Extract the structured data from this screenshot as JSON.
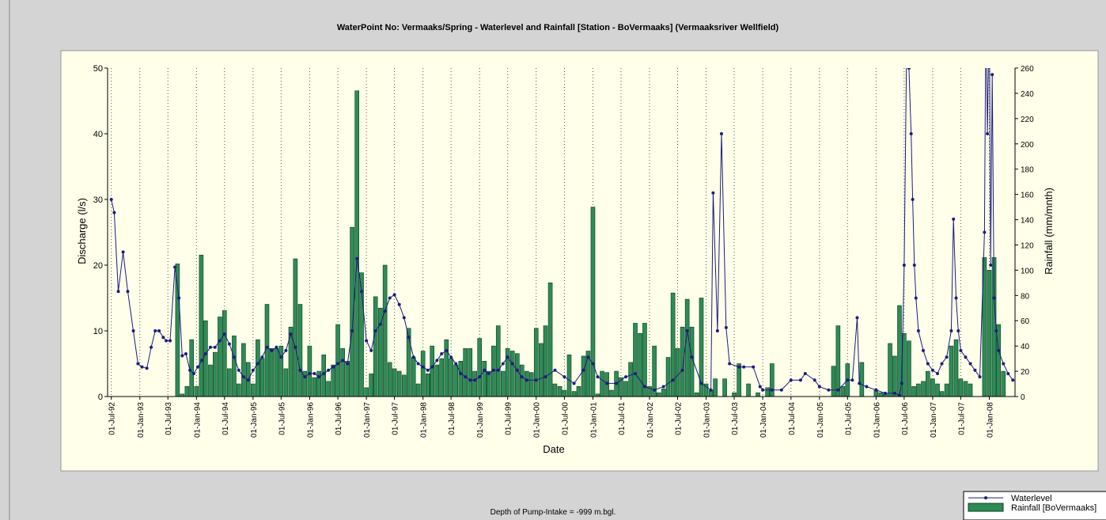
{
  "chart_data": {
    "type": "combo",
    "title": "WaterPoint No: Vermaaks/Spring - Waterlevel and Rainfall [Station - BoVermaaks] (Vermaaksriver Wellfield)",
    "subtitle": "Depth of Pump-Intake = -999 m.bgl.",
    "x_label": "Date",
    "y_label": "Discharge (l/s)",
    "y2_label": "Rainfall (mm/mnth)",
    "xlim": [
      "1992-06-07",
      "2008-06-15"
    ],
    "ylim": [
      0,
      50
    ],
    "yticks": [
      0,
      10,
      20,
      30,
      40,
      50
    ],
    "y2lim": [
      0,
      260
    ],
    "y2ticks": [
      0,
      20,
      40,
      60,
      80,
      100,
      120,
      140,
      160,
      180,
      200,
      220,
      240,
      260
    ],
    "xticks": [
      {
        "value": "1992-07-01",
        "label": "01-Jul-92"
      },
      {
        "value": "1993-01-01",
        "label": "01-Jan-93"
      },
      {
        "value": "1993-07-01",
        "label": "01-Jul-93"
      },
      {
        "value": "1994-01-01",
        "label": "01-Jan-94"
      },
      {
        "value": "1994-07-01",
        "label": "01-Jul-94"
      },
      {
        "value": "1995-01-01",
        "label": "01-Jan-95"
      },
      {
        "value": "1995-07-01",
        "label": "01-Jul-95"
      },
      {
        "value": "1996-01-01",
        "label": "01-Jan-96"
      },
      {
        "value": "1996-07-01",
        "label": "01-Jul-96"
      },
      {
        "value": "1997-01-01",
        "label": "01-Jan-97"
      },
      {
        "value": "1997-07-01",
        "label": "01-Jul-97"
      },
      {
        "value": "1998-01-01",
        "label": "01-Jan-98"
      },
      {
        "value": "1998-07-01",
        "label": "01-Jul-98"
      },
      {
        "value": "1999-01-01",
        "label": "01-Jan-99"
      },
      {
        "value": "1999-07-01",
        "label": "01-Jul-99"
      },
      {
        "value": "2000-01-01",
        "label": "01-Jan-00"
      },
      {
        "value": "2000-07-01",
        "label": "01-Jul-00"
      },
      {
        "value": "2001-01-01",
        "label": "01-Jan-01"
      },
      {
        "value": "2001-07-01",
        "label": "01-Jul-01"
      },
      {
        "value": "2002-01-01",
        "label": "01-Jan-02"
      },
      {
        "value": "2002-07-01",
        "label": "01-Jul-02"
      },
      {
        "value": "2003-01-01",
        "label": "01-Jan-03"
      },
      {
        "value": "2003-07-01",
        "label": "01-Jul-03"
      },
      {
        "value": "2004-01-01",
        "label": "01-Jan-04"
      },
      {
        "value": "2004-07-01",
        "label": "01-Jul-04"
      },
      {
        "value": "2005-01-01",
        "label": "01-Jan-05"
      },
      {
        "value": "2005-07-01",
        "label": "01-Jul-05"
      },
      {
        "value": "2006-01-01",
        "label": "01-Jan-06"
      },
      {
        "value": "2006-07-01",
        "label": "01-Jul-06"
      },
      {
        "value": "2007-01-01",
        "label": "01-Jan-07"
      },
      {
        "value": "2007-07-01",
        "label": "01-Jul-07"
      },
      {
        "value": "2008-01-01",
        "label": "01-Jan-08"
      }
    ],
    "grid": true,
    "legend": "bottom-right",
    "series": [
      {
        "name": "Rainfall [BoVermaaks]",
        "type": "bar",
        "axis": "y2",
        "color": "#2e8b57",
        "x": [
          "1993-09-01",
          "1993-10-01",
          "1993-11-01",
          "1993-12-01",
          "1994-01-01",
          "1994-02-01",
          "1994-03-01",
          "1994-04-01",
          "1994-05-01",
          "1994-06-01",
          "1994-07-01",
          "1994-08-01",
          "1994-09-01",
          "1994-10-01",
          "1994-11-01",
          "1994-12-01",
          "1995-01-01",
          "1995-02-01",
          "1995-03-01",
          "1995-04-01",
          "1995-05-01",
          "1995-06-01",
          "1995-07-01",
          "1995-08-01",
          "1995-09-01",
          "1995-10-01",
          "1995-11-01",
          "1995-12-01",
          "1996-01-01",
          "1996-02-01",
          "1996-03-01",
          "1996-04-01",
          "1996-05-01",
          "1996-06-01",
          "1996-07-01",
          "1996-08-01",
          "1996-09-01",
          "1996-10-01",
          "1996-11-01",
          "1996-12-01",
          "1997-01-01",
          "1997-02-01",
          "1997-03-01",
          "1997-04-01",
          "1997-05-01",
          "1997-06-01",
          "1997-07-01",
          "1997-08-01",
          "1997-09-01",
          "1997-10-01",
          "1997-11-01",
          "1997-12-01",
          "1998-01-01",
          "1998-02-01",
          "1998-03-01",
          "1998-04-01",
          "1998-05-01",
          "1998-06-01",
          "1998-07-01",
          "1998-08-01",
          "1998-09-01",
          "1998-10-01",
          "1998-11-01",
          "1998-12-01",
          "1999-01-01",
          "1999-02-01",
          "1999-03-01",
          "1999-04-01",
          "1999-05-01",
          "1999-06-01",
          "1999-07-01",
          "1999-08-01",
          "1999-09-01",
          "1999-10-01",
          "1999-11-01",
          "1999-12-01",
          "2000-01-01",
          "2000-02-01",
          "2000-03-01",
          "2000-04-01",
          "2000-05-01",
          "2000-06-01",
          "2000-07-01",
          "2000-08-01",
          "2000-09-01",
          "2000-10-01",
          "2000-11-01",
          "2000-12-01",
          "2001-01-01",
          "2001-02-01",
          "2001-03-01",
          "2001-04-01",
          "2001-05-01",
          "2001-06-01",
          "2001-07-01",
          "2001-08-01",
          "2001-09-01",
          "2001-10-01",
          "2001-11-01",
          "2001-12-01",
          "2002-01-01",
          "2002-02-01",
          "2002-03-01",
          "2002-04-01",
          "2002-05-01",
          "2002-06-01",
          "2002-07-01",
          "2002-08-01",
          "2002-09-01",
          "2002-10-01",
          "2002-11-01",
          "2002-12-01",
          "2003-01-01",
          "2003-02-01",
          "2003-03-01",
          "2003-04-01",
          "2003-05-01",
          "2003-06-01",
          "2003-07-01",
          "2003-08-01",
          "2003-09-01",
          "2003-10-01",
          "2003-11-01",
          "2003-12-01",
          "2004-01-01",
          "2004-02-01",
          "2004-03-01",
          "2004-04-01",
          "2004-05-01",
          "2004-06-01",
          "2004-07-01",
          "2004-08-01",
          "2004-09-01",
          "2004-10-01",
          "2004-11-01",
          "2004-12-01",
          "2005-01-01",
          "2005-02-01",
          "2005-03-01",
          "2005-04-01",
          "2005-05-01",
          "2005-06-01",
          "2005-07-01",
          "2005-08-01",
          "2005-09-01",
          "2005-10-01",
          "2005-11-01",
          "2005-12-01",
          "2006-01-01",
          "2006-02-01",
          "2006-03-01",
          "2006-04-01",
          "2006-05-01",
          "2006-06-01",
          "2006-07-01",
          "2006-08-01",
          "2006-09-01",
          "2006-10-01",
          "2006-11-01",
          "2006-12-01",
          "2007-01-01",
          "2007-02-01",
          "2007-03-01",
          "2007-04-01",
          "2007-05-01",
          "2007-06-01",
          "2007-07-01",
          "2007-08-01",
          "2007-09-01",
          "2007-10-01",
          "2007-11-01",
          "2007-12-01",
          "2008-01-01",
          "2008-02-01",
          "2008-03-01",
          "2008-04-01"
        ],
        "values": [
          105,
          2,
          8,
          45,
          8,
          112,
          60,
          25,
          35,
          63,
          68,
          22,
          48,
          10,
          42,
          27,
          10,
          45,
          30,
          73,
          38,
          38,
          40,
          22,
          55,
          109,
          73,
          20,
          40,
          15,
          20,
          33,
          12,
          25,
          57,
          38,
          28,
          134,
          242,
          98,
          7,
          18,
          79,
          70,
          104,
          27,
          22,
          20,
          17,
          54,
          31,
          10,
          36,
          18,
          40,
          25,
          30,
          45,
          30,
          25,
          28,
          38,
          38,
          20,
          46,
          28,
          20,
          40,
          56,
          20,
          38,
          36,
          34,
          25,
          20,
          19,
          54,
          42,
          56,
          90,
          10,
          8,
          5,
          33,
          4,
          8,
          32,
          36,
          150,
          2,
          20,
          19,
          5,
          20,
          15,
          12,
          27,
          58,
          50,
          58,
          8,
          40,
          3,
          6,
          31,
          82,
          38,
          55,
          77,
          55,
          3,
          78,
          10,
          5,
          14,
          0,
          14,
          0,
          3,
          26,
          0,
          10,
          0,
          3,
          0,
          7,
          26,
          0,
          0,
          0,
          0,
          0,
          0,
          0,
          0,
          0,
          0,
          0,
          0,
          24,
          56,
          8,
          26,
          0,
          0,
          27,
          0,
          0,
          5,
          3,
          2,
          42,
          32,
          72,
          50,
          44,
          8,
          10,
          12,
          20,
          14,
          10,
          4,
          10,
          40,
          45,
          14,
          12,
          10,
          0,
          0,
          110,
          100,
          110,
          57,
          20
        ]
      },
      {
        "name": "Waterlevel",
        "type": "line",
        "color": "#1c1c80",
        "x": [
          "1992-07-01",
          "1992-07-20",
          "1992-08-15",
          "1992-09-15",
          "1992-10-15",
          "1992-11-20",
          "1992-12-20",
          "1993-01-15",
          "1993-02-15",
          "1993-03-15",
          "1993-04-10",
          "1993-05-05",
          "1993-06-01",
          "1993-06-20",
          "1993-07-15",
          "1993-08-15",
          "1993-09-10",
          "1993-10-01",
          "1993-10-25",
          "1993-11-20",
          "1993-12-15",
          "1994-01-10",
          "1994-02-05",
          "1994-03-01",
          "1994-04-01",
          "1994-05-01",
          "1994-06-01",
          "1994-07-01",
          "1994-08-01",
          "1994-09-01",
          "1994-10-01",
          "1994-11-01",
          "1994-12-01",
          "1995-01-01",
          "1995-02-01",
          "1995-03-01",
          "1995-04-01",
          "1995-05-01",
          "1995-06-01",
          "1995-07-01",
          "1995-08-01",
          "1995-09-01",
          "1995-10-01",
          "1995-11-01",
          "1995-12-01",
          "1996-01-01",
          "1996-02-01",
          "1996-03-01",
          "1996-04-01",
          "1996-05-01",
          "1996-06-01",
          "1996-07-01",
          "1996-08-01",
          "1996-09-01",
          "1996-10-01",
          "1996-11-01",
          "1996-12-01",
          "1997-01-01",
          "1997-02-01",
          "1997-03-01",
          "1997-04-01",
          "1997-05-01",
          "1997-06-01",
          "1997-07-01",
          "1997-08-01",
          "1997-09-01",
          "1997-10-01",
          "1997-11-01",
          "1997-12-01",
          "1998-01-01",
          "1998-02-01",
          "1998-03-01",
          "1998-04-01",
          "1998-05-01",
          "1998-06-01",
          "1998-07-01",
          "1998-08-01",
          "1998-09-01",
          "1998-10-01",
          "1998-11-01",
          "1998-12-01",
          "1999-01-01",
          "1999-02-01",
          "1999-03-01",
          "1999-04-01",
          "1999-05-01",
          "1999-06-01",
          "1999-07-01",
          "1999-08-01",
          "1999-09-01",
          "1999-10-01",
          "1999-11-01",
          "2000-01-01",
          "2000-03-01",
          "2000-05-01",
          "2000-07-01",
          "2000-09-01",
          "2000-11-01",
          "2000-12-01",
          "2001-01-01",
          "2001-02-01",
          "2001-04-01",
          "2001-06-01",
          "2001-08-01",
          "2001-10-01",
          "2001-12-01",
          "2002-02-01",
          "2002-04-01",
          "2002-06-01",
          "2002-08-01",
          "2002-09-01",
          "2002-10-01",
          "2002-12-01",
          "2003-02-01",
          "2003-02-15",
          "2003-03-15",
          "2003-04-10",
          "2003-05-10",
          "2003-06-01",
          "2003-08-01",
          "2003-09-01",
          "2003-11-01",
          "2003-12-15",
          "2004-01-01",
          "2004-03-01",
          "2004-05-01",
          "2004-07-01",
          "2004-09-01",
          "2004-10-01",
          "2004-12-01",
          "2005-01-01",
          "2005-03-01",
          "2005-05-01",
          "2005-07-01",
          "2005-08-01",
          "2005-09-01",
          "2005-09-15",
          "2005-11-01",
          "2006-01-01",
          "2006-03-01",
          "2006-05-01",
          "2006-06-01",
          "2006-06-15",
          "2006-07-01",
          "2006-07-20",
          "2006-08-01",
          "2006-08-15",
          "2006-08-25",
          "2006-09-05",
          "2006-09-15",
          "2006-10-01",
          "2006-11-01",
          "2006-12-01",
          "2007-01-01",
          "2007-02-01",
          "2007-03-01",
          "2007-04-01",
          "2007-05-01",
          "2007-05-15",
          "2007-06-01",
          "2007-06-15",
          "2007-07-01",
          "2007-08-01",
          "2007-09-01",
          "2007-10-01",
          "2007-11-01",
          "2007-12-01",
          "2007-12-10",
          "2007-12-20",
          "2008-01-01",
          "2008-01-10",
          "2008-01-20",
          "2008-02-01",
          "2008-02-15",
          "2008-03-01",
          "2008-04-01",
          "2008-05-01",
          "2008-06-01"
        ],
        "values": [
          30,
          28,
          16,
          22,
          16,
          10,
          5,
          4.5,
          4.3,
          7.5,
          10,
          10,
          9,
          8.5,
          8.5,
          19.7,
          15,
          6.2,
          6.5,
          4,
          3.5,
          4.5,
          5.5,
          6.5,
          7.5,
          7.5,
          8.5,
          9.5,
          8,
          6,
          4,
          3,
          2.5,
          4,
          5,
          6,
          7.5,
          7,
          7.5,
          6,
          7,
          9.5,
          7.5,
          4,
          3,
          3.5,
          3.5,
          3,
          3.5,
          4,
          4.5,
          5,
          5.5,
          5,
          10,
          21,
          16,
          8.5,
          7,
          10,
          11,
          13,
          15,
          15.5,
          14,
          12,
          9,
          6,
          5,
          4.5,
          4,
          4.5,
          5.5,
          6.5,
          7,
          6,
          5,
          3.5,
          3,
          2.5,
          2.5,
          3,
          4,
          3.5,
          4,
          4,
          5,
          6,
          5,
          4,
          3,
          2.5,
          2.5,
          3,
          4,
          3,
          2,
          4,
          6,
          5,
          3,
          2,
          2,
          3,
          3.5,
          1.5,
          1,
          1.5,
          2.5,
          4,
          10,
          6,
          2,
          1,
          31,
          10,
          40,
          10.5,
          5,
          4.5,
          4.5,
          4.5,
          1.5,
          1,
          1,
          1,
          2.5,
          2.5,
          3.5,
          2.5,
          1.5,
          1,
          1,
          2.5,
          2.5,
          12,
          2,
          1.5,
          1,
          0.5,
          0.5,
          0.2,
          2,
          20,
          60,
          50,
          40,
          30,
          20,
          15,
          10,
          7,
          5,
          4,
          3.5,
          5,
          6,
          10,
          27,
          15,
          10,
          7,
          6,
          5,
          4,
          3,
          25,
          60,
          40,
          60,
          20,
          49,
          15,
          10,
          7,
          5,
          3.5,
          2.5
        ]
      }
    ]
  }
}
